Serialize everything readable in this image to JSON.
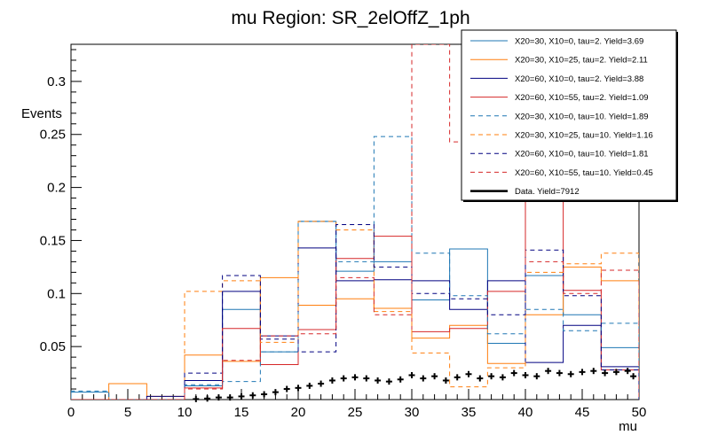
{
  "chart_data": {
    "type": "histogram",
    "title": "mu Region: SR_2elOffZ_1ph",
    "xlabel": "mu",
    "ylabel": "Events",
    "xlim": [
      0,
      50
    ],
    "ylim": [
      0,
      0.335
    ],
    "x_ticks": [
      0,
      5,
      10,
      15,
      20,
      25,
      30,
      35,
      40,
      45,
      50
    ],
    "y_ticks": [
      0.05,
      0.1,
      0.15,
      0.2,
      0.25,
      0.3
    ],
    "y_tick_labels": [
      "0.05",
      "0.1",
      "0.15",
      "0.2",
      "0.25",
      "0.3"
    ],
    "legend_position": "top-right",
    "bin_edges": [
      0,
      3.33,
      6.67,
      10,
      13.33,
      16.67,
      20,
      23.33,
      26.67,
      30,
      33.33,
      36.67,
      40,
      43.33,
      46.67,
      50
    ],
    "series": [
      {
        "name": "X20=30, X10=0, tau=2. Yield=3.69",
        "color": "#1f77b4",
        "style": "solid",
        "values": [
          0.007,
          0,
          0,
          0.013,
          0.085,
          0.045,
          0.168,
          0.121,
          0.13,
          0.094,
          0.142,
          0.053,
          0.117,
          0.08,
          0.049
        ]
      },
      {
        "name": "X20=30, X10=25, tau=2. Yield=2.11",
        "color": "#ff7f0e",
        "style": "solid",
        "values": [
          0,
          0.015,
          0.003,
          0.042,
          0.036,
          0.115,
          0.089,
          0.095,
          0.086,
          0.058,
          0.07,
          0.034,
          0.08,
          0.125,
          0.112
        ]
      },
      {
        "name": "X20=60, X10=0, tau=2. Yield=3.88",
        "color": "#000080",
        "style": "solid",
        "values": [
          0,
          0,
          0.003,
          0.018,
          0.102,
          0.06,
          0.143,
          0.112,
          0.113,
          0.112,
          0.085,
          0.112,
          0.035,
          0.07,
          0.031
        ]
      },
      {
        "name": "X20=60, X10=55, tau=2. Yield=1.09",
        "color": "#d62728",
        "style": "solid",
        "values": [
          0,
          0,
          0,
          0.011,
          0.067,
          0.033,
          0.066,
          0.133,
          0.154,
          0.064,
          0.067,
          0.102,
          0.195,
          0.103,
          0.028
        ]
      },
      {
        "name": "X20=30, X10=0, tau=10. Yield=1.89",
        "color": "#1f77b4",
        "style": "dashed",
        "values": [
          0.008,
          0,
          0,
          0.014,
          0.017,
          0.045,
          0.168,
          0.13,
          0.248,
          0.138,
          0.098,
          0.062,
          0.085,
          0.065,
          0.072
        ]
      },
      {
        "name": "X20=30, X10=25, tau=10. Yield=1.16",
        "color": "#ff7f0e",
        "style": "dashed",
        "values": [
          0,
          0,
          0,
          0.102,
          0.112,
          0.054,
          0.168,
          0.16,
          0.083,
          0.044,
          0.012,
          0.03,
          0.12,
          0.128,
          0.138
        ]
      },
      {
        "name": "X20=60, X10=0, tau=10. Yield=1.81",
        "color": "#000080",
        "style": "dashed",
        "values": [
          0,
          0,
          0,
          0.025,
          0.117,
          0.057,
          0.045,
          0.165,
          0.125,
          0.1,
          0.095,
          0.08,
          0.141,
          0.098,
          0.028
        ]
      },
      {
        "name": "X20=60, X10=55, tau=10. Yield=0.45",
        "color": "#d62728",
        "style": "dashed",
        "values": [
          0,
          0,
          0,
          0.01,
          0.037,
          0.06,
          0.062,
          0.115,
          0.08,
          0.335,
          0.243,
          0.29,
          0.13,
          0.1,
          0.122
        ]
      }
    ],
    "data": {
      "name": "Data. Yield=7912",
      "color": "#000000",
      "x": [
        11,
        12,
        13,
        14,
        15,
        16,
        17,
        18,
        19,
        20,
        21,
        22,
        23,
        24,
        25,
        26,
        27,
        28,
        29,
        30,
        31,
        32,
        33,
        34,
        35,
        36,
        37,
        38,
        39,
        40,
        41,
        42,
        43,
        44,
        45,
        46,
        47,
        48,
        49,
        49.5
      ],
      "y": [
        0.0005,
        0.001,
        0.002,
        0.002,
        0.003,
        0.004,
        0.005,
        0.007,
        0.01,
        0.011,
        0.013,
        0.015,
        0.018,
        0.02,
        0.021,
        0.02,
        0.018,
        0.017,
        0.019,
        0.023,
        0.02,
        0.022,
        0.018,
        0.021,
        0.024,
        0.02,
        0.022,
        0.021,
        0.025,
        0.023,
        0.022,
        0.027,
        0.025,
        0.024,
        0.026,
        0.027,
        0.025,
        0.026,
        0.027,
        0.022
      ]
    }
  }
}
